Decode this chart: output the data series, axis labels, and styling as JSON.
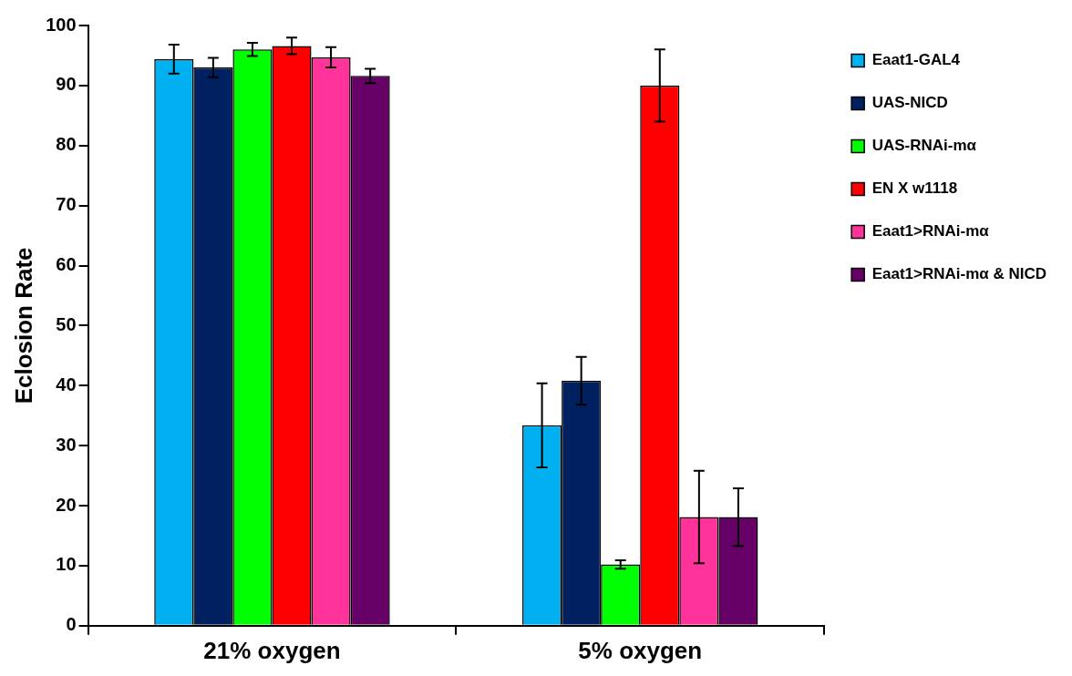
{
  "chart_data": {
    "type": "bar",
    "ylabel": "Eclosion Rate",
    "categories": [
      "21% oxygen",
      "5% oxygen"
    ],
    "ylim": [
      0,
      100
    ],
    "yticks": [
      0,
      10,
      20,
      30,
      40,
      50,
      60,
      70,
      80,
      90,
      100
    ],
    "grid": false,
    "legend": "right",
    "series": [
      {
        "name": "Eaat1-GAL4",
        "color": "#00b0f0",
        "values": [
          94.4,
          33.4
        ],
        "errors": [
          2.4,
          7
        ]
      },
      {
        "name": "UAS-NICD",
        "color": "#002060",
        "values": [
          93.0,
          40.8
        ],
        "errors": [
          1.6,
          4
        ]
      },
      {
        "name": "UAS-RNAi-mα",
        "color": "#00ff00",
        "values": [
          96.0,
          10.2
        ],
        "errors": [
          1.1,
          0.7
        ]
      },
      {
        "name": "EN X w1118",
        "color": "#ff0000",
        "values": [
          96.6,
          90.0
        ],
        "errors": [
          1.4,
          6
        ]
      },
      {
        "name": "Eaat1>RNAi-mα",
        "color": "#ff3399",
        "values": [
          94.7,
          18.1
        ],
        "errors": [
          1.7,
          7.7
        ]
      },
      {
        "name": "Eaat1>RNAi-mα & NICD",
        "color": "#660066",
        "values": [
          91.6,
          18.1
        ],
        "errors": [
          1.2,
          4.8
        ]
      }
    ]
  }
}
